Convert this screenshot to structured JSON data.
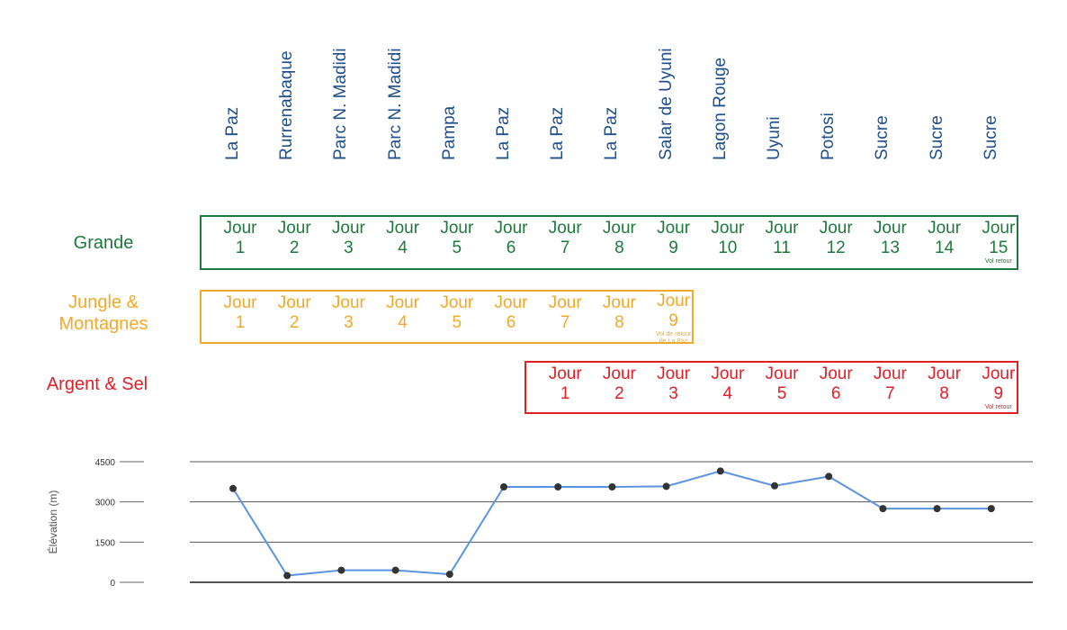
{
  "colors": {
    "grande": "#1e7a3c",
    "jungle": "#f0a928",
    "argent": "#e02027",
    "location": "#1f4f8a",
    "line": "#5b93e3",
    "point": "#333333"
  },
  "locations": [
    "La Paz",
    "Rurrenabaque",
    "Parc N. Madidi",
    "Parc N. Madidi",
    "Pampa",
    "La Paz",
    "La Paz",
    "La Paz",
    "Salar de Uyuni",
    "Lagon Rouge",
    "Uyuni",
    "Potosi",
    "Sucre",
    "Sucre",
    "Sucre"
  ],
  "tours": [
    {
      "key": "grande",
      "name": "Grande",
      "start_index": 0,
      "days": [
        {
          "word": "Jour",
          "num": "1"
        },
        {
          "word": "Jour",
          "num": "2"
        },
        {
          "word": "Jour",
          "num": "3"
        },
        {
          "word": "Jour",
          "num": "4"
        },
        {
          "word": "Jour",
          "num": "5"
        },
        {
          "word": "Jour",
          "num": "6"
        },
        {
          "word": "Jour",
          "num": "7"
        },
        {
          "word": "Jour",
          "num": "8"
        },
        {
          "word": "Jour",
          "num": "9"
        },
        {
          "word": "Jour",
          "num": "10"
        },
        {
          "word": "Jour",
          "num": "11"
        },
        {
          "word": "Jour",
          "num": "12"
        },
        {
          "word": "Jour",
          "num": "13"
        },
        {
          "word": "Jour",
          "num": "14"
        },
        {
          "word": "Jour",
          "num": "15",
          "note": "Vol retour"
        }
      ]
    },
    {
      "key": "jungle",
      "name": "Jungle &\nMontagnes",
      "start_index": 0,
      "days": [
        {
          "word": "Jour",
          "num": "1"
        },
        {
          "word": "Jour",
          "num": "2"
        },
        {
          "word": "Jour",
          "num": "3"
        },
        {
          "word": "Jour",
          "num": "4"
        },
        {
          "word": "Jour",
          "num": "5"
        },
        {
          "word": "Jour",
          "num": "6"
        },
        {
          "word": "Jour",
          "num": "7"
        },
        {
          "word": "Jour",
          "num": "8"
        },
        {
          "word": "Jour",
          "num": "9",
          "note": "Vol de retour\nde La Paz"
        }
      ]
    },
    {
      "key": "argent",
      "name": "Argent & Sel",
      "start_index": 6,
      "days": [
        {
          "word": "Jour",
          "num": "1"
        },
        {
          "word": "Jour",
          "num": "2"
        },
        {
          "word": "Jour",
          "num": "3"
        },
        {
          "word": "Jour",
          "num": "4"
        },
        {
          "word": "Jour",
          "num": "5"
        },
        {
          "word": "Jour",
          "num": "6"
        },
        {
          "word": "Jour",
          "num": "7"
        },
        {
          "word": "Jour",
          "num": "8"
        },
        {
          "word": "Jour",
          "num": "9",
          "note": "Vol retour"
        }
      ]
    }
  ],
  "chart_data": {
    "type": "line",
    "ylabel": "Élévation (m)",
    "ylim": [
      0,
      4500
    ],
    "yticks": [
      4500,
      3000,
      1500,
      0
    ],
    "grid": true,
    "x": [
      "La Paz",
      "Rurrenabaque",
      "Parc N. Madidi",
      "Parc N. Madidi",
      "Pampa",
      "La Paz",
      "La Paz",
      "La Paz",
      "Salar de Uyuni",
      "Lagon Rouge",
      "Uyuni",
      "Potosi",
      "Sucre",
      "Sucre",
      "Sucre"
    ],
    "values": [
      3500,
      250,
      450,
      450,
      300,
      3560,
      3560,
      3560,
      3580,
      4150,
      3600,
      3950,
      2750,
      2750,
      2750
    ]
  }
}
